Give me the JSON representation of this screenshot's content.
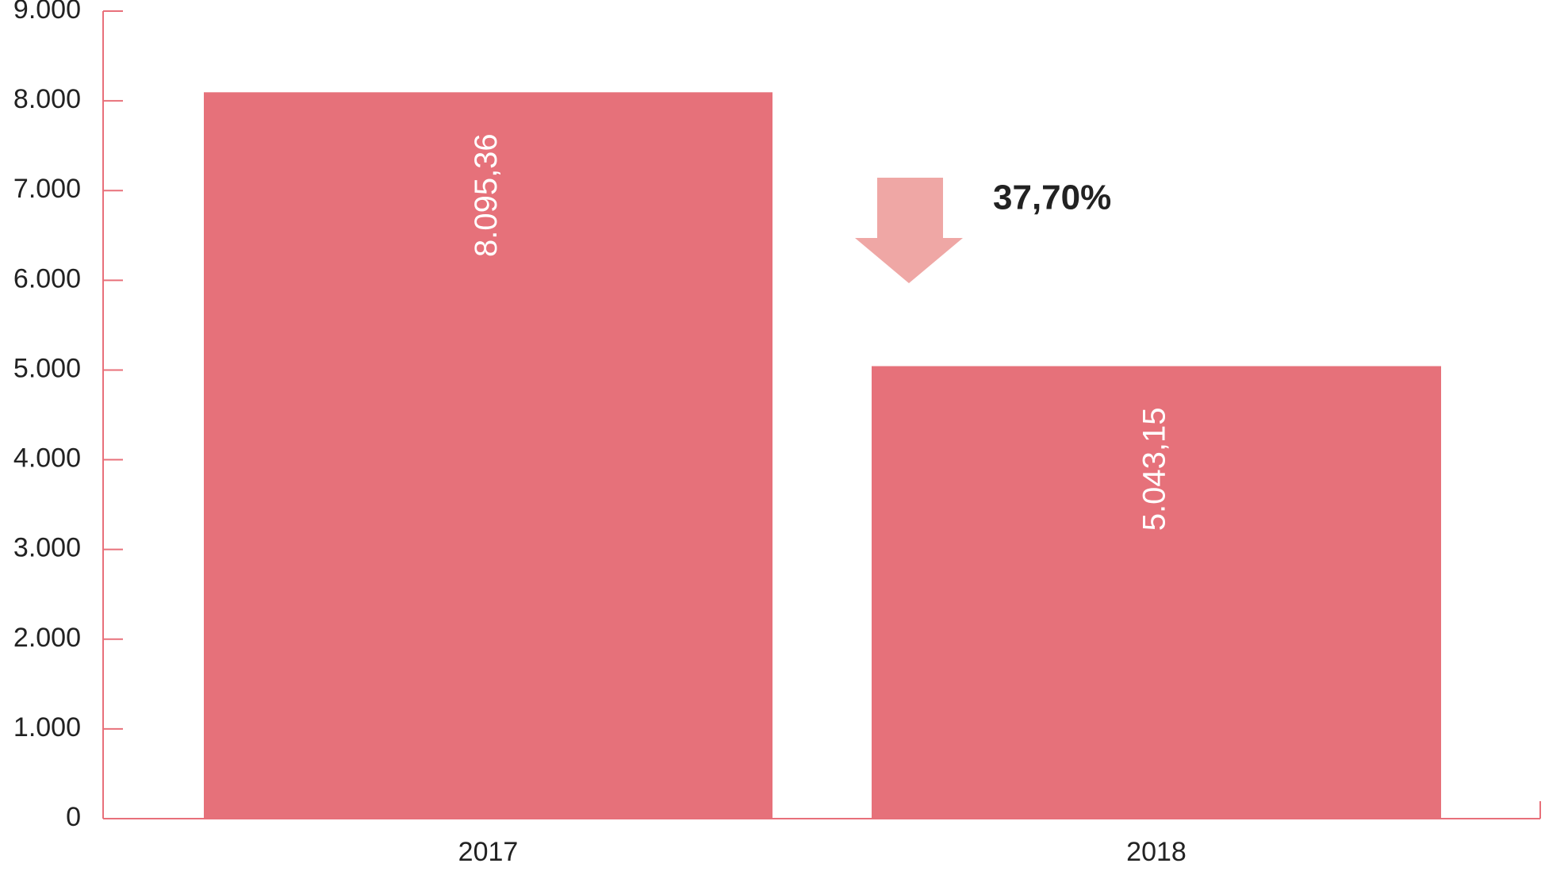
{
  "chart_data": {
    "type": "bar",
    "categories": [
      "2017",
      "2018"
    ],
    "values": [
      8095.36,
      5043.15
    ],
    "value_labels": [
      "8.095,36",
      "5.043,15"
    ],
    "color": "#e6717a",
    "ylim": [
      0,
      9000
    ],
    "yticks": [
      0,
      {
        "value": 1000,
        "label": "1.000"
      },
      {
        "value": 2000,
        "label": "2.000"
      },
      {
        "value": 3000,
        "label": "3.000"
      },
      {
        "value": 4000,
        "label": "4.000"
      },
      {
        "value": 5000,
        "label": "5.000"
      },
      {
        "value": 6000,
        "label": "6.000"
      },
      {
        "value": 7000,
        "label": "7.000"
      },
      {
        "value": 8000,
        "label": "8.000"
      },
      {
        "value": 9000,
        "label": "9.000"
      }
    ],
    "annotation": "37,70%"
  }
}
